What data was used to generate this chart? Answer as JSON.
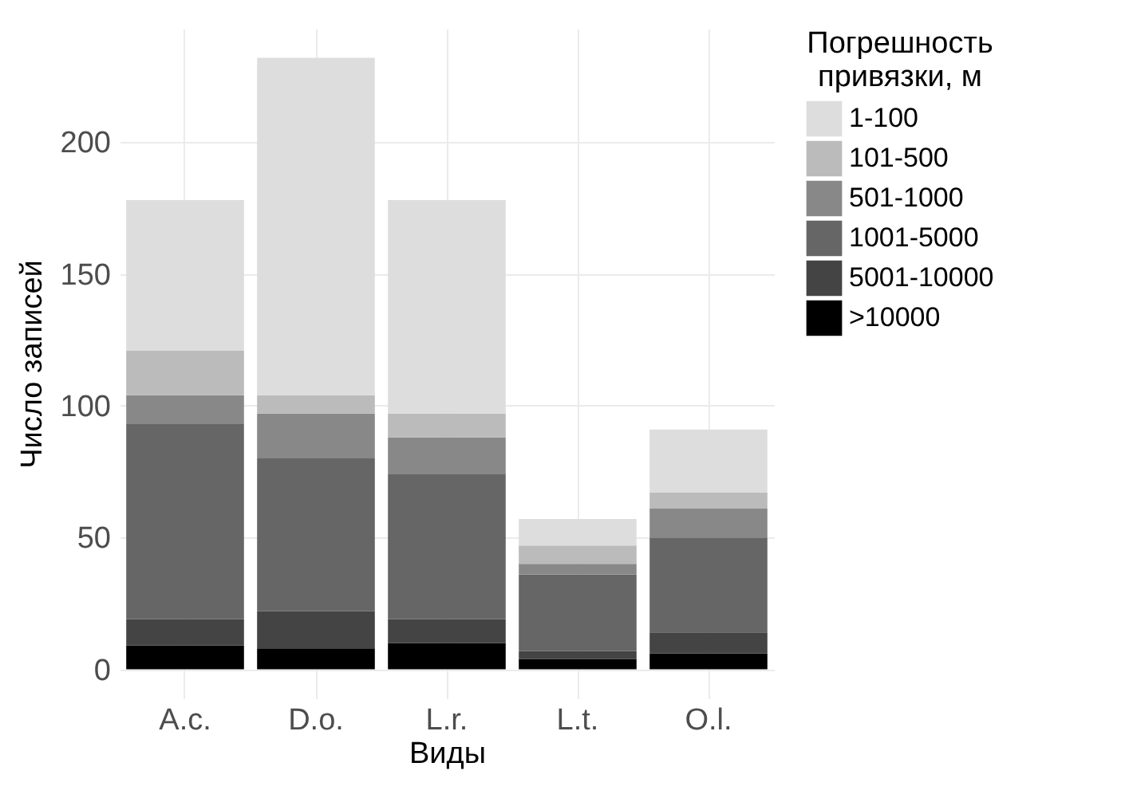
{
  "chart_data": {
    "type": "bar",
    "stacked": true,
    "xlabel": "Виды",
    "ylabel": "Число записей",
    "legend_title": "Погрешность\nпривязки, м",
    "categories": [
      "A.c.",
      "D.o.",
      "L.r.",
      "L.t.",
      "O.l."
    ],
    "series": [
      {
        "name": ">10000",
        "color": "#000000",
        "values": [
          9,
          8,
          10,
          4,
          6
        ]
      },
      {
        "name": "5001-10000",
        "color": "#444444",
        "values": [
          10,
          14,
          9,
          3,
          8
        ]
      },
      {
        "name": "1001-5000",
        "color": "#666666",
        "values": [
          74,
          58,
          55,
          29,
          36
        ]
      },
      {
        "name": "501-1000",
        "color": "#888888",
        "values": [
          11,
          17,
          14,
          4,
          11
        ]
      },
      {
        "name": "101-500",
        "color": "#bbbbbb",
        "values": [
          17,
          7,
          9,
          7,
          6
        ]
      },
      {
        "name": "1-100",
        "color": "#dddddd",
        "values": [
          57,
          128,
          81,
          10,
          24
        ]
      }
    ],
    "ylim": [
      -11,
      243
    ],
    "yticks": [
      0,
      50,
      100,
      150,
      200
    ],
    "grid": true,
    "legend": "right"
  }
}
